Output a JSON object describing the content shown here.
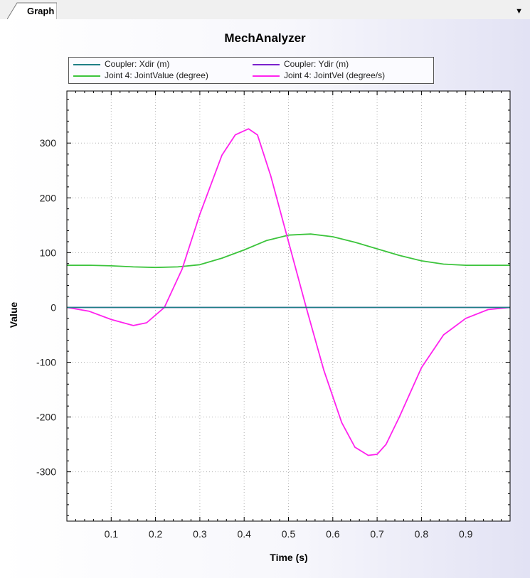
{
  "tab": {
    "label": "Graph"
  },
  "dropdown_icon": "▼",
  "chart_data": {
    "type": "line",
    "title": "MechAnalyzer",
    "xlabel": "Time (s)",
    "ylabel": "Value",
    "xlim": [
      0,
      1
    ],
    "ylim": [
      -390,
      395
    ],
    "xticks": [
      0.1,
      0.2,
      0.3,
      0.4,
      0.5,
      0.6,
      0.7,
      0.8,
      0.9
    ],
    "xtick_labels": [
      "0.1",
      "0.2",
      "0.3",
      "0.4",
      "0.5",
      "0.6",
      "0.7",
      "0.8",
      "0.9"
    ],
    "yticks": [
      -300,
      -200,
      -100,
      0,
      100,
      200,
      300
    ],
    "ytick_labels": [
      "-300",
      "-200",
      "-100",
      "0",
      "100",
      "200",
      "300"
    ],
    "grid": true,
    "legend_position": "top",
    "series": [
      {
        "name": "Coupler: Xdir (m)",
        "color": "#1f7f86",
        "x": [
          0,
          0.2,
          0.4,
          0.6,
          0.8,
          1.0
        ],
        "y": [
          0,
          0,
          0,
          0,
          0,
          0
        ]
      },
      {
        "name": "Coupler: Ydir (m)",
        "color": "#7a22cc",
        "x": [
          0,
          0.2,
          0.4,
          0.6,
          0.8,
          1.0
        ],
        "y": [
          0,
          0,
          0,
          0,
          0,
          0
        ]
      },
      {
        "name": "Joint 4: JointValue (degree)",
        "color": "#3cc43c",
        "x": [
          0,
          0.05,
          0.1,
          0.15,
          0.2,
          0.25,
          0.3,
          0.35,
          0.4,
          0.45,
          0.5,
          0.55,
          0.6,
          0.65,
          0.7,
          0.75,
          0.8,
          0.85,
          0.9,
          0.95,
          1.0
        ],
        "y": [
          77,
          77,
          76,
          74,
          73,
          74,
          78,
          90,
          105,
          122,
          132,
          134,
          129,
          119,
          107,
          95,
          85,
          79,
          77,
          77,
          77
        ]
      },
      {
        "name": "Joint 4: JointVel (degree/s)",
        "color": "#ff22ee",
        "x": [
          0,
          0.05,
          0.1,
          0.15,
          0.18,
          0.22,
          0.26,
          0.3,
          0.35,
          0.38,
          0.41,
          0.43,
          0.46,
          0.5,
          0.54,
          0.58,
          0.62,
          0.65,
          0.68,
          0.7,
          0.72,
          0.75,
          0.8,
          0.85,
          0.9,
          0.95,
          1.0
        ],
        "y": [
          0,
          -7,
          -22,
          -33,
          -28,
          0,
          70,
          170,
          278,
          315,
          326,
          315,
          240,
          120,
          0,
          -115,
          -210,
          -255,
          -270,
          -268,
          -250,
          -200,
          -110,
          -50,
          -20,
          -4,
          0
        ]
      }
    ]
  }
}
